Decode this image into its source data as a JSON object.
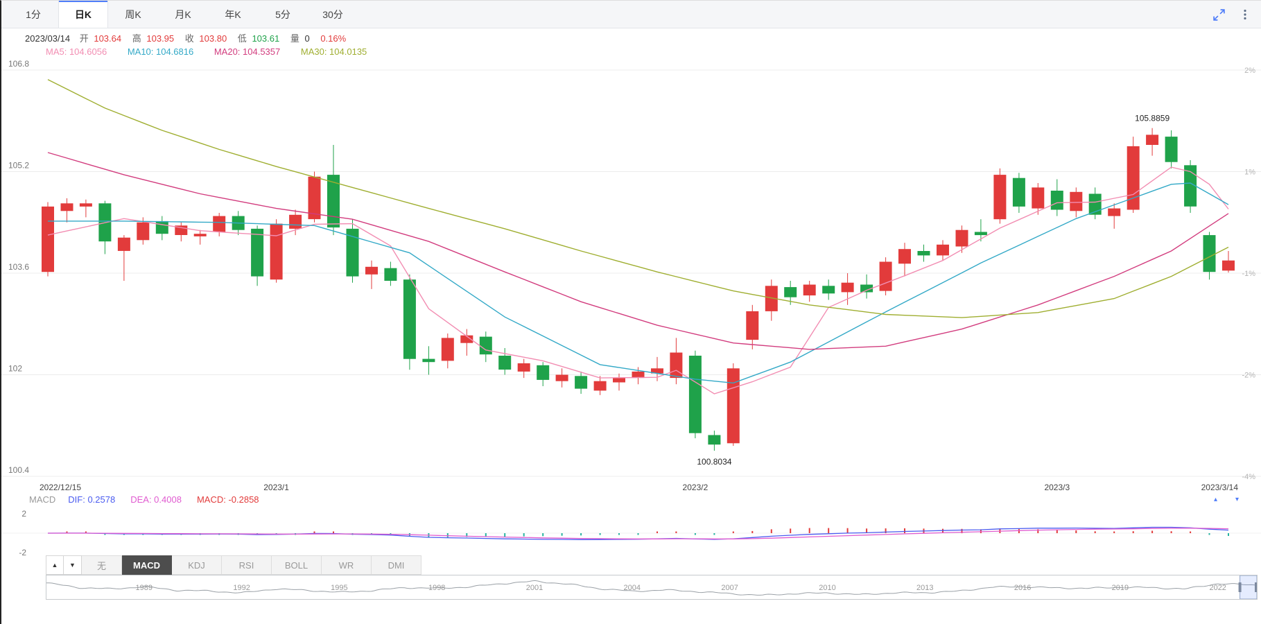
{
  "colors": {
    "up": "#e23b3b",
    "down": "#1fa24a",
    "hist_down": "#26b3a0",
    "ma5": "#f28db2",
    "ma10": "#33a9c7",
    "ma20": "#d23c7e",
    "ma30": "#9fae30",
    "dif": "#4a5bf0",
    "dea": "#e05bd0",
    "macd_value": "#e23b3b",
    "accent_blue": "#4f7df9"
  },
  "toolbar": {
    "tabs": [
      {
        "label": "1分",
        "active": false
      },
      {
        "label": "日K",
        "active": true
      },
      {
        "label": "周K",
        "active": false
      },
      {
        "label": "月K",
        "active": false
      },
      {
        "label": "年K",
        "active": false
      },
      {
        "label": "5分",
        "active": false
      },
      {
        "label": "30分",
        "active": false
      }
    ]
  },
  "quote_bar": {
    "date": "2023/03/14",
    "open_label": "开",
    "open": "103.64",
    "high_label": "高",
    "high": "103.95",
    "close_label": "收",
    "close": "103.80",
    "low_label": "低",
    "low": "103.61",
    "volume_label": "量",
    "volume": "0",
    "change_percent": "0.16%"
  },
  "ma_legend": {
    "ma5": "MA5: 104.6056",
    "ma10": "MA10: 104.6816",
    "ma20": "MA20: 104.5357",
    "ma30": "MA30: 104.0135"
  },
  "macd_legend": {
    "title": "MACD",
    "dif": "DIF: 0.2578",
    "dea": "DEA: 0.4008",
    "macd": "MACD: -0.2858",
    "collapse_glyph": "▴",
    "expand_glyph": "▾"
  },
  "indicator_bar": {
    "up_glyph": "▲",
    "down_glyph": "▼",
    "tabs": [
      {
        "label": "无",
        "active": false
      },
      {
        "label": "MACD",
        "active": true
      },
      {
        "label": "KDJ",
        "active": false
      },
      {
        "label": "RSI",
        "active": false
      },
      {
        "label": "BOLL",
        "active": false
      },
      {
        "label": "WR",
        "active": false
      },
      {
        "label": "DMI",
        "active": false
      }
    ]
  },
  "chart_data": {
    "type": "candlestick",
    "title": "",
    "ylim": [
      100.4,
      106.8
    ],
    "y_ticks": [
      {
        "price": "106.8",
        "pct": "2%"
      },
      {
        "price": "105.2",
        "pct": "1%"
      },
      {
        "price": "103.6",
        "pct": "-1%"
      },
      {
        "price": "102",
        "pct": "-2%"
      },
      {
        "price": "100.4",
        "pct": "-4%"
      }
    ],
    "x_axis": [
      {
        "label": "2022/12/15",
        "index": 0,
        "align": "left"
      },
      {
        "label": "2023/1",
        "index": 12,
        "align": "center"
      },
      {
        "label": "2023/2",
        "index": 34,
        "align": "center"
      },
      {
        "label": "2023/3",
        "index": 53,
        "align": "center"
      },
      {
        "label": "2023/3/14",
        "index": 62,
        "align": "right"
      }
    ],
    "annotations": [
      {
        "text": "105.8859",
        "index": 58,
        "price": 105.8859,
        "position": "above"
      },
      {
        "text": "100.8034",
        "index": 35,
        "price": 100.8034,
        "position": "below"
      }
    ],
    "candles": [
      [
        103.62,
        104.72,
        103.55,
        104.65
      ],
      [
        104.58,
        104.78,
        104.4,
        104.7
      ],
      [
        104.65,
        104.76,
        104.48,
        104.7
      ],
      [
        104.7,
        104.74,
        103.9,
        104.1
      ],
      [
        103.95,
        104.2,
        103.48,
        104.16
      ],
      [
        104.12,
        104.48,
        104.05,
        104.4
      ],
      [
        104.42,
        104.5,
        104.12,
        104.22
      ],
      [
        104.2,
        104.4,
        104.1,
        104.35
      ],
      [
        104.18,
        104.28,
        104.05,
        104.22
      ],
      [
        104.25,
        104.55,
        104.18,
        104.5
      ],
      [
        104.5,
        104.58,
        104.2,
        104.28
      ],
      [
        104.3,
        104.35,
        103.4,
        103.55
      ],
      [
        103.5,
        104.45,
        103.45,
        104.38
      ],
      [
        104.3,
        104.6,
        104.2,
        104.52
      ],
      [
        104.45,
        105.2,
        104.4,
        105.12
      ],
      [
        105.15,
        105.62,
        104.2,
        104.32
      ],
      [
        104.3,
        104.45,
        103.45,
        103.55
      ],
      [
        103.58,
        103.8,
        103.35,
        103.7
      ],
      [
        103.68,
        103.78,
        103.4,
        103.48
      ],
      [
        103.5,
        103.58,
        102.08,
        102.25
      ],
      [
        102.25,
        102.45,
        102.0,
        102.2
      ],
      [
        102.22,
        102.65,
        102.1,
        102.58
      ],
      [
        102.5,
        102.72,
        102.3,
        102.62
      ],
      [
        102.6,
        102.68,
        102.2,
        102.32
      ],
      [
        102.3,
        102.42,
        102.0,
        102.08
      ],
      [
        102.05,
        102.25,
        101.95,
        102.18
      ],
      [
        102.15,
        102.2,
        101.82,
        101.92
      ],
      [
        101.9,
        102.1,
        101.8,
        102.0
      ],
      [
        101.98,
        102.05,
        101.7,
        101.78
      ],
      [
        101.75,
        101.98,
        101.68,
        101.9
      ],
      [
        101.88,
        102.02,
        101.75,
        101.95
      ],
      [
        101.95,
        102.12,
        101.85,
        102.05
      ],
      [
        102.02,
        102.28,
        101.9,
        102.1
      ],
      [
        101.95,
        102.58,
        101.85,
        102.35
      ],
      [
        102.3,
        102.38,
        101.0,
        101.08
      ],
      [
        101.05,
        101.12,
        100.8034,
        100.9
      ],
      [
        100.92,
        102.18,
        100.88,
        102.1
      ],
      [
        102.55,
        103.1,
        102.4,
        103.0
      ],
      [
        103.0,
        103.5,
        102.85,
        103.4
      ],
      [
        103.38,
        103.48,
        103.1,
        103.22
      ],
      [
        103.25,
        103.48,
        103.15,
        103.42
      ],
      [
        103.4,
        103.5,
        103.18,
        103.28
      ],
      [
        103.3,
        103.6,
        103.1,
        103.45
      ],
      [
        103.42,
        103.58,
        103.2,
        103.3
      ],
      [
        103.32,
        103.85,
        103.25,
        103.78
      ],
      [
        103.75,
        104.08,
        103.55,
        103.98
      ],
      [
        103.95,
        104.05,
        103.78,
        103.88
      ],
      [
        103.88,
        104.12,
        103.8,
        104.05
      ],
      [
        104.02,
        104.35,
        103.92,
        104.28
      ],
      [
        104.25,
        104.45,
        104.1,
        104.2
      ],
      [
        104.45,
        105.25,
        104.38,
        105.15
      ],
      [
        105.1,
        105.18,
        104.55,
        104.65
      ],
      [
        104.62,
        105.02,
        104.52,
        104.95
      ],
      [
        104.9,
        105.08,
        104.5,
        104.6
      ],
      [
        104.58,
        104.95,
        104.48,
        104.88
      ],
      [
        104.85,
        104.95,
        104.45,
        104.52
      ],
      [
        104.5,
        104.7,
        104.3,
        104.62
      ],
      [
        104.6,
        105.75,
        104.55,
        105.6
      ],
      [
        105.62,
        105.8859,
        105.45,
        105.78
      ],
      [
        105.75,
        105.85,
        105.25,
        105.35
      ],
      [
        105.3,
        105.38,
        104.55,
        104.65
      ],
      [
        104.2,
        104.25,
        103.5,
        103.62
      ],
      [
        103.64,
        103.95,
        103.61,
        103.8
      ]
    ],
    "ma_lines": [
      {
        "name": "MA5",
        "color": "#f28db2",
        "points": [
          [
            0,
            104.2
          ],
          [
            4,
            104.46
          ],
          [
            8,
            104.27
          ],
          [
            12,
            104.19
          ],
          [
            14,
            104.37
          ],
          [
            16,
            104.38
          ],
          [
            18,
            104.03
          ],
          [
            20,
            103.04
          ],
          [
            23,
            102.39
          ],
          [
            26,
            102.22
          ],
          [
            29,
            101.95
          ],
          [
            32,
            101.96
          ],
          [
            33,
            102.07
          ],
          [
            35,
            101.7
          ],
          [
            37,
            101.89
          ],
          [
            39,
            102.12
          ],
          [
            41,
            103.06
          ],
          [
            43,
            103.33
          ],
          [
            45,
            103.56
          ],
          [
            47,
            103.8
          ],
          [
            50,
            104.31
          ],
          [
            53,
            104.71
          ],
          [
            55,
            104.72
          ],
          [
            57,
            104.84
          ],
          [
            59,
            105.27
          ],
          [
            60,
            105.2
          ],
          [
            61,
            105.0
          ],
          [
            62,
            104.61
          ]
        ]
      },
      {
        "name": "MA10",
        "color": "#33a9c7",
        "points": [
          [
            0,
            104.42
          ],
          [
            4,
            104.42
          ],
          [
            9,
            104.4
          ],
          [
            14,
            104.35
          ],
          [
            19,
            103.92
          ],
          [
            24,
            102.91
          ],
          [
            29,
            102.16
          ],
          [
            34,
            101.93
          ],
          [
            36,
            101.87
          ],
          [
            39,
            102.2
          ],
          [
            44,
            102.99
          ],
          [
            49,
            103.76
          ],
          [
            54,
            104.46
          ],
          [
            59,
            105.0
          ],
          [
            60,
            105.02
          ],
          [
            62,
            104.68
          ]
        ]
      },
      {
        "name": "MA20",
        "color": "#d23c7e",
        "points": [
          [
            0,
            105.5
          ],
          [
            4,
            105.15
          ],
          [
            8,
            104.85
          ],
          [
            12,
            104.62
          ],
          [
            16,
            104.45
          ],
          [
            20,
            104.1
          ],
          [
            24,
            103.62
          ],
          [
            28,
            103.15
          ],
          [
            32,
            102.78
          ],
          [
            36,
            102.5
          ],
          [
            40,
            102.4
          ],
          [
            44,
            102.45
          ],
          [
            48,
            102.72
          ],
          [
            52,
            103.1
          ],
          [
            56,
            103.55
          ],
          [
            59,
            103.95
          ],
          [
            62,
            104.54
          ]
        ]
      },
      {
        "name": "MA30",
        "color": "#9fae30",
        "points": [
          [
            0,
            106.65
          ],
          [
            3,
            106.2
          ],
          [
            6,
            105.85
          ],
          [
            9,
            105.55
          ],
          [
            12,
            105.28
          ],
          [
            16,
            104.95
          ],
          [
            20,
            104.62
          ],
          [
            24,
            104.3
          ],
          [
            28,
            103.95
          ],
          [
            32,
            103.62
          ],
          [
            36,
            103.32
          ],
          [
            40,
            103.1
          ],
          [
            44,
            102.95
          ],
          [
            48,
            102.9
          ],
          [
            52,
            102.98
          ],
          [
            56,
            103.2
          ],
          [
            59,
            103.55
          ],
          [
            62,
            104.01
          ]
        ]
      }
    ],
    "macd": {
      "ylim": [
        -2,
        2
      ],
      "y_ticks": [
        "2",
        "-2"
      ]
    },
    "navigator": {
      "year_start": 1986,
      "year_end": 2023.2,
      "tick_years": [
        1989,
        1992,
        1995,
        1998,
        2001,
        2004,
        2007,
        2010,
        2013,
        2016,
        2019,
        2022
      ],
      "values": [
        110,
        96,
        92,
        99,
        88,
        86,
        80,
        92,
        88,
        82,
        87,
        96,
        94,
        98,
        108,
        115,
        107,
        93,
        85,
        89,
        84,
        78,
        73,
        78,
        80,
        75,
        80,
        81,
        85,
        97,
        99,
        95,
        94,
        97,
        96,
        92,
        108,
        104
      ],
      "selection": [
        0.986,
        1.0
      ]
    }
  }
}
